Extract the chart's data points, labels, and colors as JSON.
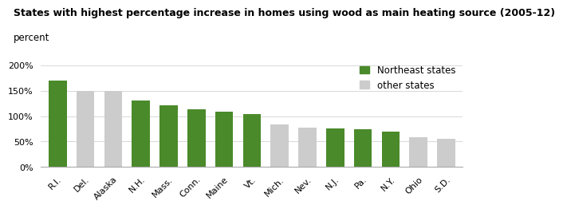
{
  "title": "States with highest percentage increase in homes using wood as main heating source (2005-12)",
  "ylabel": "percent",
  "categories": [
    "R.I.",
    "Del.",
    "Alaska",
    "N.H.",
    "Mass.",
    "Conn.",
    "Maine",
    "Vt.",
    "Mich.",
    "Nev.",
    "N.J.",
    "Pa.",
    "N.Y.",
    "Ohio",
    "S.D."
  ],
  "values": [
    170,
    150,
    150,
    131,
    121,
    113,
    109,
    104,
    84,
    78,
    76,
    74,
    69,
    59,
    55
  ],
  "is_northeast": [
    true,
    false,
    false,
    true,
    true,
    true,
    true,
    true,
    false,
    false,
    true,
    true,
    true,
    false,
    false
  ],
  "green_color": "#4a8a2a",
  "gray_color": "#cccccc",
  "ylim": [
    0,
    215
  ],
  "yticks": [
    0,
    50,
    100,
    150,
    200
  ],
  "ytick_labels": [
    "0%",
    "50%",
    "100%",
    "150%",
    "200%"
  ],
  "title_fontsize": 9.0,
  "ylabel_fontsize": 8.5,
  "tick_fontsize": 8.0,
  "legend_fontsize": 8.5,
  "background_color": "#ffffff",
  "grid_color": "#d8d8d8"
}
